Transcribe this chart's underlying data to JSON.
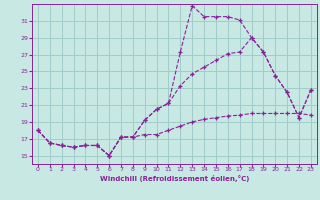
{
  "xlabel": "Windchill (Refroidissement éolien,°C)",
  "xlim": [
    -0.5,
    23.5
  ],
  "ylim": [
    14.0,
    33.0
  ],
  "xticks": [
    0,
    1,
    2,
    3,
    4,
    5,
    6,
    7,
    8,
    9,
    10,
    11,
    12,
    13,
    14,
    15,
    16,
    17,
    18,
    19,
    20,
    21,
    22,
    23
  ],
  "yticks": [
    15,
    17,
    19,
    21,
    23,
    25,
    27,
    29,
    31
  ],
  "background_color": "#c8e8e4",
  "grid_color": "#a0ccca",
  "line_color": "#882299",
  "line1_x": [
    0,
    1,
    2,
    3,
    4,
    5,
    6,
    7,
    8,
    9,
    10,
    11,
    12,
    13,
    14,
    15,
    16,
    17,
    18,
    19,
    20,
    21,
    22,
    23
  ],
  "line1_y": [
    18.0,
    16.5,
    16.2,
    16.0,
    16.2,
    16.2,
    15.0,
    17.2,
    17.2,
    19.2,
    20.5,
    21.2,
    27.3,
    32.8,
    31.5,
    31.5,
    31.5,
    31.1,
    29.0,
    27.3,
    24.5,
    22.5,
    19.5,
    22.8
  ],
  "line2_x": [
    0,
    1,
    2,
    3,
    4,
    5,
    6,
    7,
    8,
    9,
    10,
    11,
    12,
    13,
    14,
    15,
    16,
    17,
    18,
    19,
    20,
    21,
    22,
    23
  ],
  "line2_y": [
    18.0,
    16.5,
    16.2,
    16.0,
    16.2,
    16.2,
    15.0,
    17.2,
    17.2,
    19.2,
    20.5,
    21.2,
    23.3,
    24.7,
    25.5,
    26.3,
    27.1,
    27.3,
    29.0,
    27.3,
    24.5,
    22.5,
    19.5,
    22.8
  ],
  "line3_x": [
    0,
    1,
    2,
    3,
    4,
    5,
    6,
    7,
    8,
    9,
    10,
    11,
    12,
    13,
    14,
    15,
    16,
    17,
    18,
    19,
    20,
    21,
    22,
    23
  ],
  "line3_y": [
    18.0,
    16.5,
    16.2,
    16.0,
    16.2,
    16.2,
    15.0,
    17.2,
    17.2,
    17.5,
    17.5,
    18.0,
    18.5,
    19.0,
    19.3,
    19.5,
    19.7,
    19.8,
    20.0,
    20.0,
    20.0,
    20.0,
    20.0,
    19.8
  ]
}
